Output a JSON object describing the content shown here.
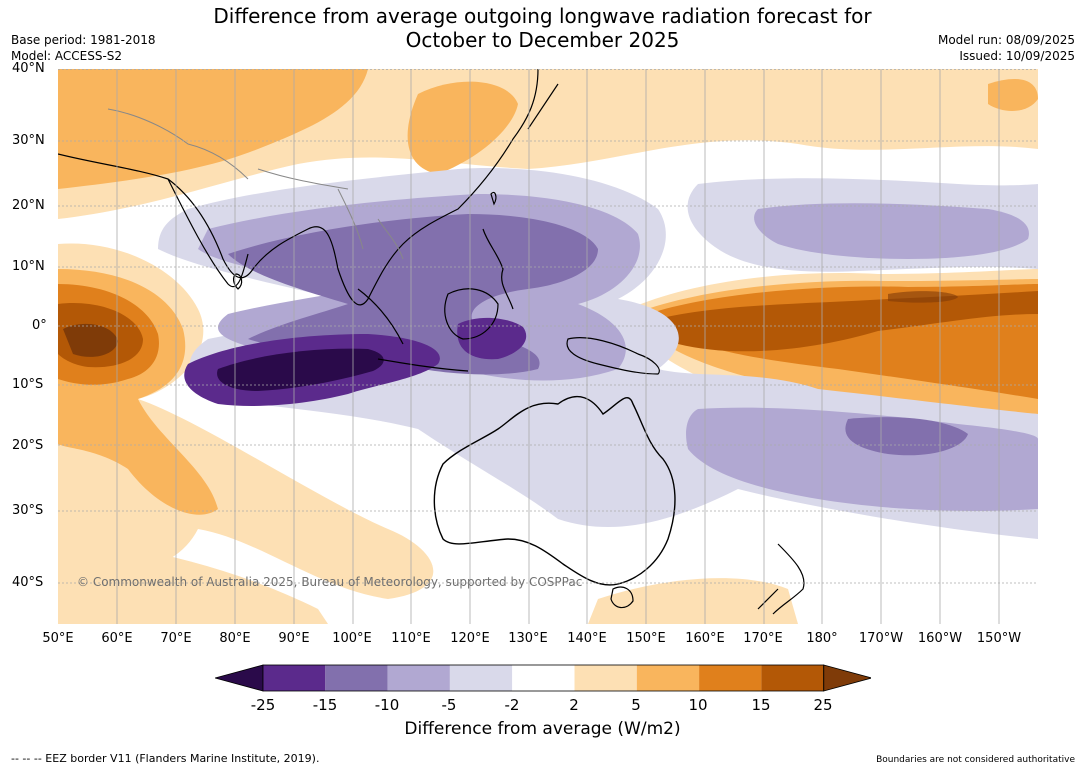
{
  "title_line1": "Difference from average outgoing longwave radiation forecast for",
  "title_line2": "October to December 2025",
  "base_period": "Base period: 1981-2018",
  "model": "Model: ACCESS-S2",
  "model_run": "Model run: 08/09/2025",
  "issued": "Issued: 10/09/2025",
  "copyright": "© Commonwealth of Australia 2025, Bureau of Meteorology, supported by COSPPac",
  "lat_labels": [
    "40°N",
    "30°N",
    "20°N",
    "10°N",
    "0°",
    "10°S",
    "20°S",
    "30°S",
    "40°S"
  ],
  "lon_labels": [
    "50°E",
    "60°E",
    "70°E",
    "80°E",
    "90°E",
    "100°E",
    "110°E",
    "120°E",
    "130°E",
    "140°E",
    "150°E",
    "160°E",
    "170°E",
    "180°",
    "170°W",
    "160°W",
    "150°W"
  ],
  "colorbar": {
    "title": "Difference from average (W/m2)",
    "ticks": [
      "-25",
      "-15",
      "-10",
      "-5",
      "-2",
      "2",
      "5",
      "10",
      "15",
      "25"
    ],
    "colors": [
      "#2a0a4a",
      "#5b2a8c",
      "#8270ad",
      "#b1a8d2",
      "#d9d9ea",
      "#ffffff",
      "#fde0b4",
      "#f9b55d",
      "#e0801c",
      "#b35806",
      "#7f3b08"
    ]
  },
  "footer_left": "--  --  -- EEZ border V11 (Flanders Marine Institute, 2019).",
  "footer_right": "Boundaries are not considered authoritative"
}
